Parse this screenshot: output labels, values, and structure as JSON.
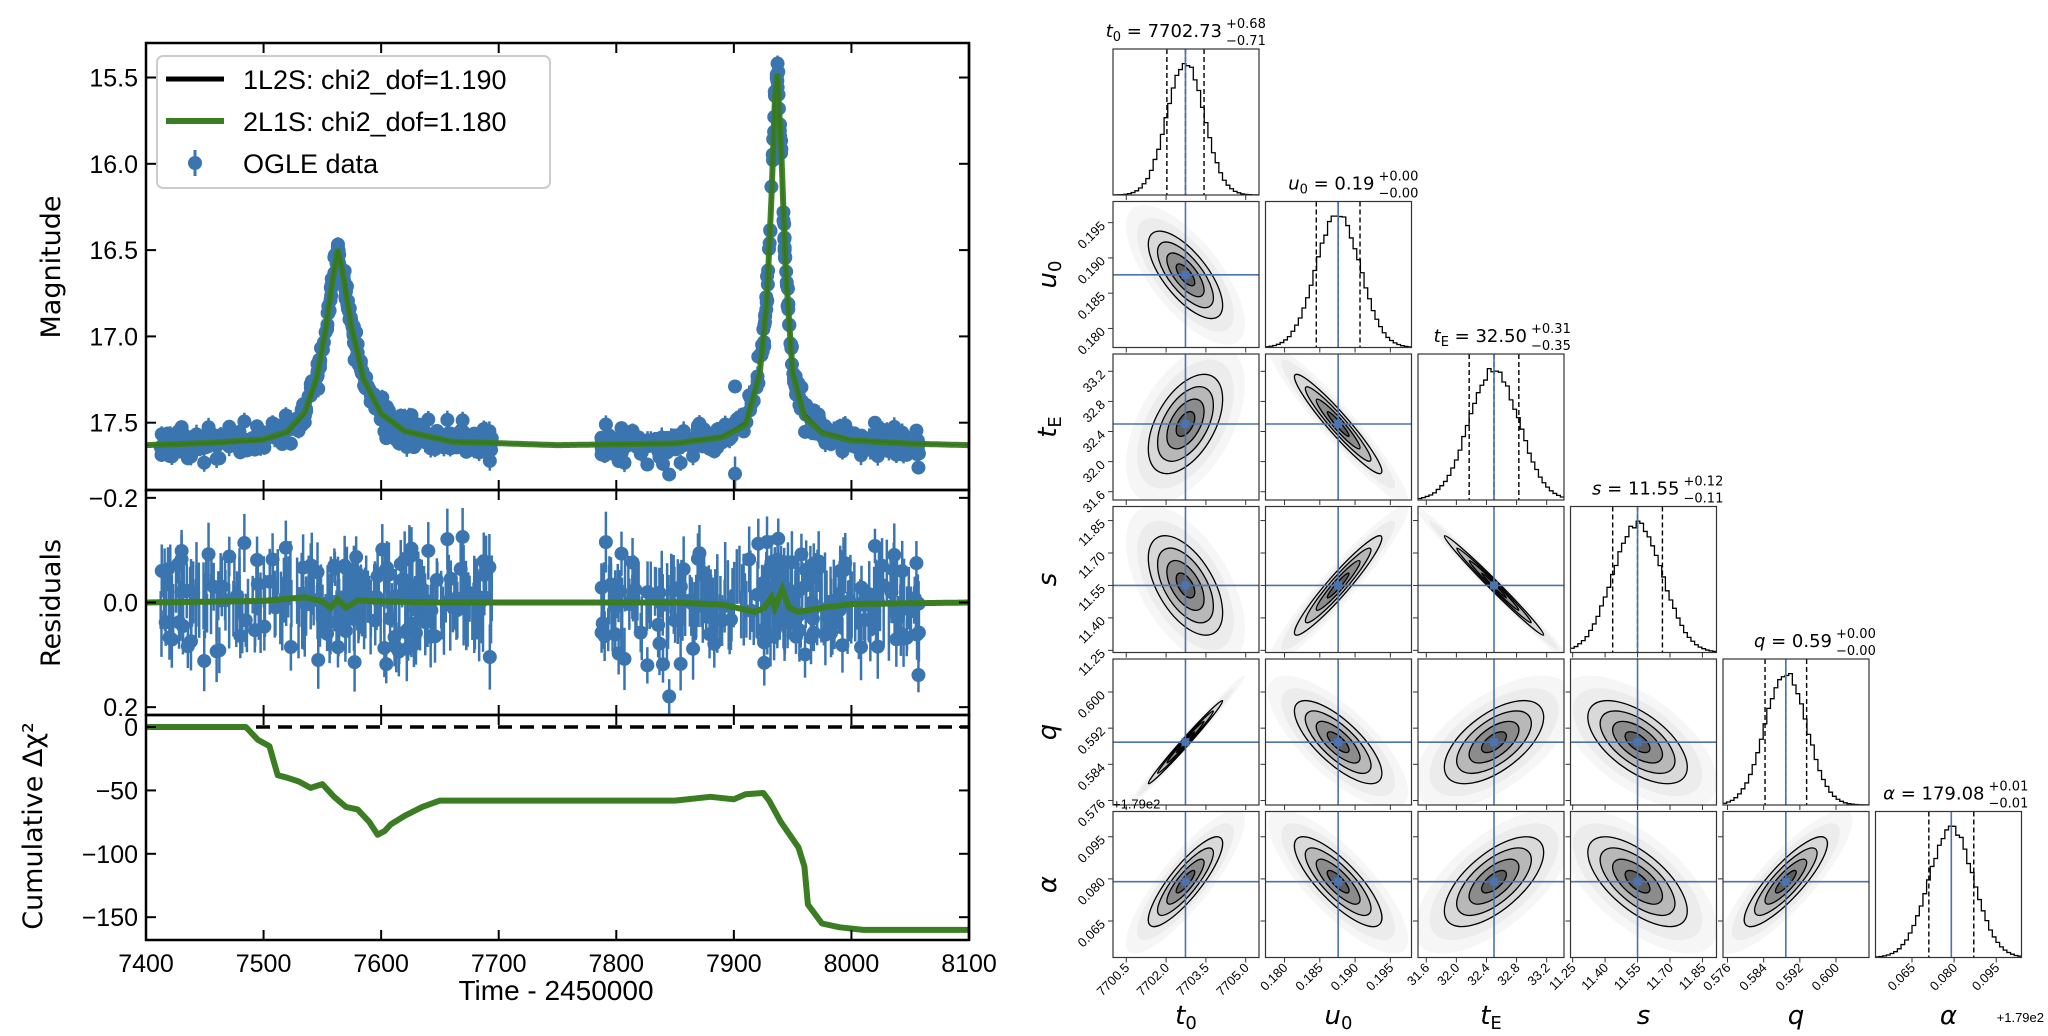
{
  "colors": {
    "data": "#3b75af",
    "model_1l2s": "#000000",
    "model_2l1s": "#3a7d22",
    "truth": "#4c72b0",
    "contour": "#000000"
  },
  "chart_data": [
    {
      "type": "line",
      "panel": "light-curve",
      "xlabel": "Time - 2450000",
      "ylabel": "Magnitude",
      "xlim": [
        7400,
        8100
      ],
      "ylim": [
        17.89,
        15.3
      ],
      "y_inverted": true,
      "xticks": [
        7400,
        7500,
        7600,
        7700,
        7800,
        7900,
        8000,
        8100
      ],
      "yticks": [
        15.5,
        16.0,
        16.5,
        17.0,
        17.5
      ],
      "ytick_labels": [
        "15.5",
        "16.0",
        "16.5",
        "17.0",
        "17.5"
      ],
      "legend": {
        "placement": "top-left",
        "entries": [
          {
            "label": "1L2S: chi2_dof=1.190",
            "kind": "line",
            "color": "#000000"
          },
          {
            "label": "2L1S: chi2_dof=1.180",
            "kind": "line",
            "color": "#3a7d22"
          },
          {
            "label": "OGLE data",
            "kind": "errorbar",
            "color": "#3b75af"
          }
        ]
      },
      "model_1l2s": [
        [
          7400,
          17.63
        ],
        [
          7450,
          17.62
        ],
        [
          7500,
          17.6
        ],
        [
          7520,
          17.56
        ],
        [
          7535,
          17.45
        ],
        [
          7545,
          17.25
        ],
        [
          7553,
          16.95
        ],
        [
          7558,
          16.7
        ],
        [
          7563,
          16.5
        ],
        [
          7568,
          16.65
        ],
        [
          7575,
          16.95
        ],
        [
          7585,
          17.25
        ],
        [
          7600,
          17.45
        ],
        [
          7620,
          17.55
        ],
        [
          7660,
          17.61
        ],
        [
          7750,
          17.63
        ],
        [
          7850,
          17.62
        ],
        [
          7890,
          17.58
        ],
        [
          7910,
          17.5
        ],
        [
          7922,
          17.2
        ],
        [
          7928,
          16.8
        ],
        [
          7932,
          16.2
        ],
        [
          7935,
          15.6
        ],
        [
          7937,
          15.48
        ],
        [
          7940,
          15.9
        ],
        [
          7944,
          16.6
        ],
        [
          7950,
          17.2
        ],
        [
          7960,
          17.45
        ],
        [
          7975,
          17.55
        ],
        [
          8000,
          17.6
        ],
        [
          8050,
          17.62
        ],
        [
          8100,
          17.63
        ]
      ],
      "observing_seasons": [
        [
          7412,
          7695
        ],
        [
          7787,
          8058
        ]
      ],
      "data_scatter_mag": 0.045,
      "typical_error_mag": 0.045,
      "notable_points": [
        [
          7901,
          17.29
        ],
        [
          7845,
          17.8
        ],
        [
          8020,
          17.5
        ],
        [
          8057,
          17.76
        ]
      ]
    },
    {
      "type": "scatter",
      "panel": "residuals",
      "ylabel": "Residuals",
      "xlim": [
        7400,
        8100
      ],
      "ylim": [
        0.215,
        -0.215
      ],
      "y_inverted": true,
      "yticks": [
        -0.2,
        0.0,
        0.2
      ],
      "ytick_labels": [
        "−0.2",
        "0.0",
        "0.2"
      ],
      "model_difference_2l1s": [
        [
          7400,
          0
        ],
        [
          7500,
          -0.003
        ],
        [
          7535,
          -0.01
        ],
        [
          7550,
          -0.002
        ],
        [
          7557,
          0.01
        ],
        [
          7563,
          -0.006
        ],
        [
          7570,
          0.01
        ],
        [
          7580,
          -0.004
        ],
        [
          7600,
          -0.002
        ],
        [
          7650,
          0
        ],
        [
          7850,
          0
        ],
        [
          7890,
          0.004
        ],
        [
          7918,
          0.018
        ],
        [
          7926,
          0.01
        ],
        [
          7932,
          -0.01
        ],
        [
          7935,
          0.01
        ],
        [
          7941,
          -0.025
        ],
        [
          7947,
          0.01
        ],
        [
          7955,
          0.018
        ],
        [
          7975,
          0.01
        ],
        [
          8000,
          0.003
        ],
        [
          8100,
          0
        ]
      ]
    },
    {
      "type": "line",
      "panel": "cumulative-delta-chi2",
      "ylabel": "Cumulative Δχ²",
      "xlabel": "Time - 2450000",
      "xlim": [
        7400,
        8100
      ],
      "ylim": [
        -168,
        9.5
      ],
      "yticks": [
        0,
        -50,
        -100,
        -150
      ],
      "ytick_labels": [
        "0",
        "−50",
        "−100",
        "−150"
      ],
      "reference_line": 0,
      "series": [
        [
          7400,
          0
        ],
        [
          7485,
          0
        ],
        [
          7495,
          -10
        ],
        [
          7505,
          -15
        ],
        [
          7512,
          -38
        ],
        [
          7520,
          -40
        ],
        [
          7530,
          -43
        ],
        [
          7540,
          -48
        ],
        [
          7550,
          -45
        ],
        [
          7560,
          -55
        ],
        [
          7570,
          -63
        ],
        [
          7580,
          -65
        ],
        [
          7590,
          -75
        ],
        [
          7597,
          -85
        ],
        [
          7603,
          -82
        ],
        [
          7608,
          -77
        ],
        [
          7620,
          -70
        ],
        [
          7635,
          -63
        ],
        [
          7650,
          -58
        ],
        [
          7850,
          -58
        ],
        [
          7880,
          -55
        ],
        [
          7900,
          -57
        ],
        [
          7910,
          -53
        ],
        [
          7925,
          -52
        ],
        [
          7930,
          -58
        ],
        [
          7940,
          -75
        ],
        [
          7955,
          -95
        ],
        [
          7960,
          -110
        ],
        [
          7963,
          -140
        ],
        [
          7975,
          -155
        ],
        [
          7990,
          -158
        ],
        [
          8010,
          -160
        ],
        [
          8100,
          -160
        ]
      ]
    },
    {
      "type": "corner",
      "quantile_lines": "dashed, 16/50/84",
      "parameters": [
        {
          "sym": "t",
          "sub": "0",
          "value": "7702.73",
          "plus": "+0.68",
          "minus": "−0.71",
          "median": 7702.73,
          "sigma": 0.7,
          "range": [
            7700.0,
            7705.5
          ],
          "ticks": [
            7700.5,
            7702.0,
            7703.5,
            7705.0
          ],
          "tick_labels": [
            "7700.5",
            "7702.0",
            "7703.5",
            "7705.0"
          ]
        },
        {
          "sym": "u",
          "sub": "0",
          "value": "0.19",
          "plus": "+0.00",
          "minus": "−0.00",
          "median": 0.1876,
          "sigma": 0.0031,
          "range": [
            0.1773,
            0.198
          ],
          "ticks": [
            0.18,
            0.185,
            0.19,
            0.195
          ],
          "tick_labels": [
            "0.180",
            "0.185",
            "0.190",
            "0.195"
          ]
        },
        {
          "sym": "t",
          "sub": "E",
          "value": "32.50",
          "plus": "+0.31",
          "minus": "−0.35",
          "median": 32.5,
          "sigma": 0.33,
          "range": [
            31.49,
            33.43
          ],
          "ticks": [
            31.6,
            32.0,
            32.4,
            32.8,
            33.2
          ],
          "tick_labels": [
            "31.6",
            "32.0",
            "32.4",
            "32.8",
            "33.2"
          ]
        },
        {
          "sym": "s",
          "sub": "",
          "value": "11.55",
          "plus": "+0.12",
          "minus": "−0.11",
          "median": 11.55,
          "sigma": 0.115,
          "range": [
            11.24,
            11.915
          ],
          "ticks": [
            11.25,
            11.4,
            11.55,
            11.7,
            11.85
          ],
          "tick_labels": [
            "11.25",
            "11.40",
            "11.55",
            "11.70",
            "11.85"
          ]
        },
        {
          "sym": "q",
          "sub": "",
          "value": "0.59",
          "plus": "+0.00",
          "minus": "−0.00",
          "median": 0.5889,
          "sigma": 0.0046,
          "range": [
            0.575,
            0.6073
          ],
          "ticks": [
            0.576,
            0.584,
            0.592,
            0.6
          ],
          "tick_labels": [
            "0.576",
            "0.584",
            "0.592",
            "0.600"
          ]
        },
        {
          "sym": "α",
          "sub": "",
          "value": "179.08",
          "plus": "+0.01",
          "minus": "−0.01",
          "median": 179.079,
          "sigma": 0.008,
          "range": [
            179.052,
            179.104
          ],
          "ticks": [
            179.065,
            179.08,
            179.095
          ],
          "tick_labels": [
            "0.065",
            "0.080",
            "0.095"
          ],
          "offset_label": "+1.79e2"
        }
      ],
      "correlations": [
        [
          1,
          -0.7,
          0.5,
          -0.55,
          0.99,
          0.85
        ],
        [
          -0.7,
          1,
          -0.95,
          0.95,
          -0.75,
          -0.8
        ],
        [
          0.5,
          -0.95,
          1,
          -0.99,
          0.6,
          0.65
        ],
        [
          -0.55,
          0.95,
          -0.99,
          1,
          -0.6,
          -0.65
        ],
        [
          0.99,
          -0.75,
          0.6,
          -0.6,
          1,
          0.85
        ],
        [
          0.85,
          -0.8,
          0.65,
          -0.65,
          0.85,
          1
        ]
      ]
    }
  ]
}
